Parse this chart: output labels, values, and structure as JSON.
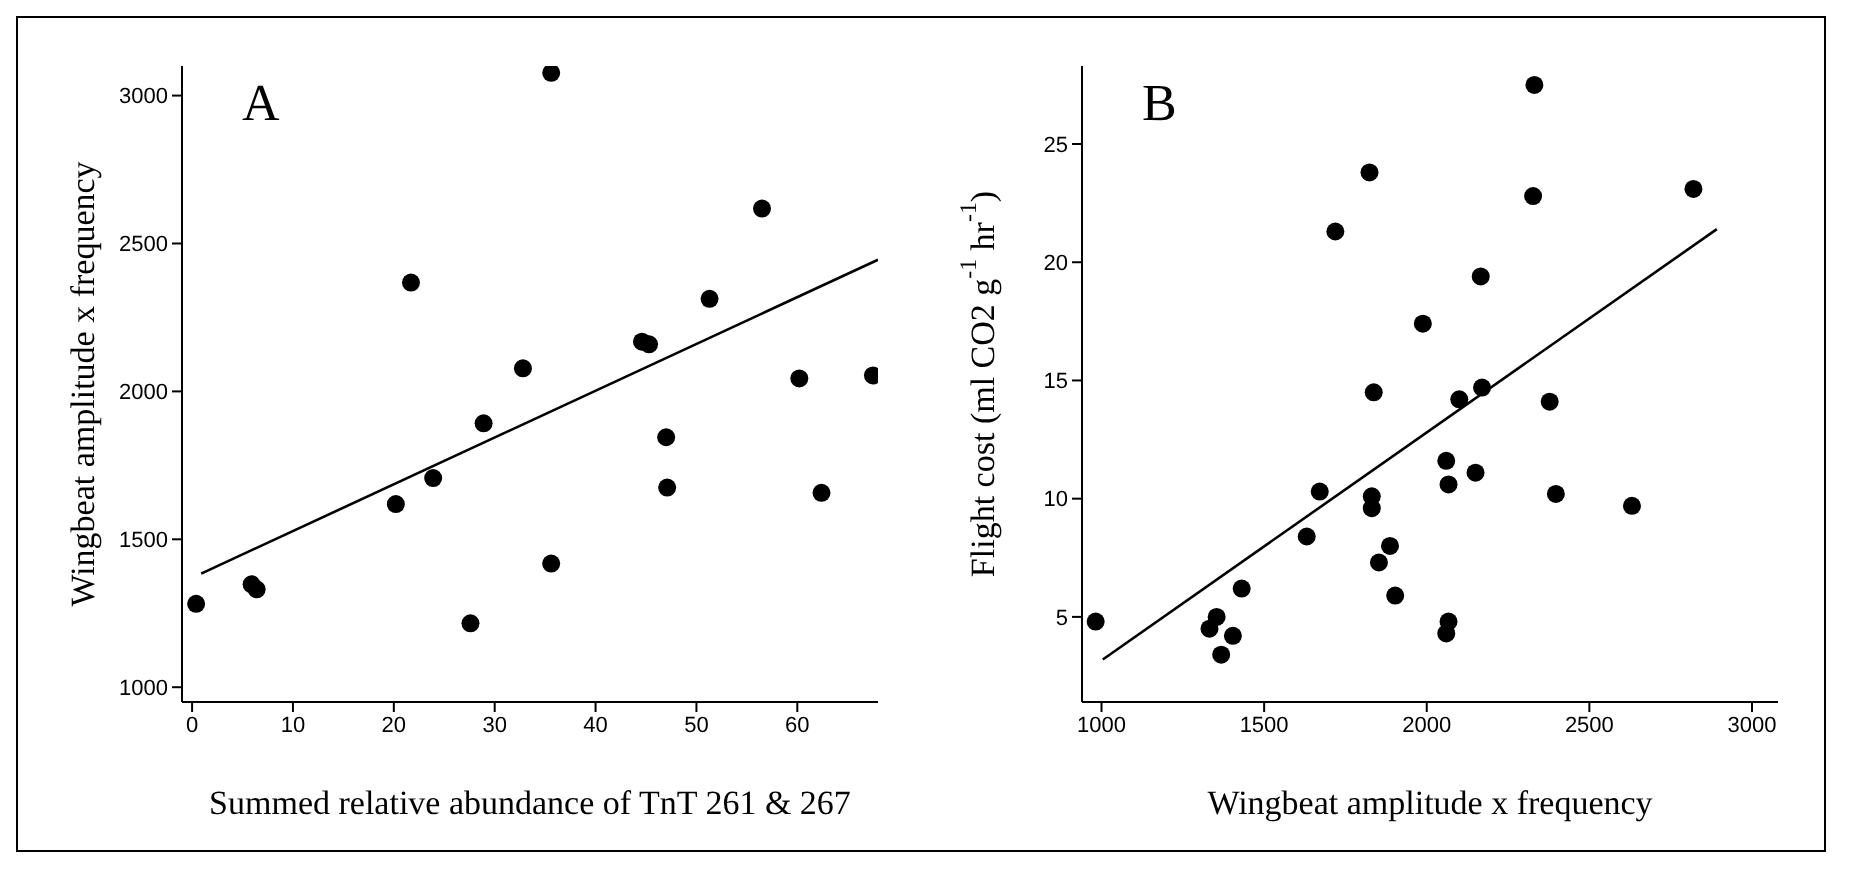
{
  "chart_data": [
    {
      "type": "scatter",
      "title": "A",
      "xlabel": "Summed relative abundance of TnT 261 & 267",
      "ylabel": "Wingbeat amplitude x frequency",
      "xlim": [
        -1,
        68
      ],
      "ylim": [
        950,
        3100
      ],
      "xticks": [
        0,
        10,
        20,
        30,
        40,
        50,
        60
      ],
      "yticks": [
        1000,
        1500,
        2000,
        2500,
        3000
      ],
      "grid": false,
      "series": [
        {
          "marker": "circle",
          "color": "#000000",
          "x": [
            0.4,
            5.9,
            6.4,
            21.7,
            20.2,
            23.9,
            28.9,
            27.6,
            32.8,
            35.6,
            35.6,
            44.6,
            45.3,
            47.0,
            47.1,
            51.3,
            56.5,
            60.2,
            62.4,
            67.5
          ],
          "values": [
            1282,
            1348,
            1331,
            2368,
            1619,
            1707,
            1892,
            1216,
            2078,
            3077,
            1418,
            2168,
            2159,
            1845,
            1675,
            2313,
            2618,
            2044,
            1657,
            2054
          ]
        },
        {
          "type": "line",
          "marker": "none",
          "color": "#000000",
          "x": [
            0.9,
            68
          ],
          "values": [
            1384,
            2445
          ],
          "line_style": "solid"
        }
      ]
    },
    {
      "type": "scatter",
      "title": "B",
      "xlabel": "Wingbeat amplitude x frequency",
      "ylabel": "Flight cost (ml CO2 g$^{-1}$ hr$^{-1}$)",
      "xlim": [
        940,
        3080
      ],
      "ylim": [
        1.4,
        28.3
      ],
      "xticks": [
        1000,
        1500,
        2000,
        2500,
        3000
      ],
      "yticks": [
        5,
        10,
        15,
        20,
        25
      ],
      "grid": false,
      "series": [
        {
          "marker": "circle",
          "color": "#000000",
          "x": [
            982,
            1332,
            1354,
            1368,
            1404,
            1431,
            1631,
            1671,
            1719,
            1824,
            1837,
            1831,
            1831,
            1887,
            1853,
            1903,
            1988,
            2060,
            2067,
            2067,
            2060,
            2100,
            2150,
            2166,
            2170,
            2331,
            2327,
            2378,
            2397,
            2631,
            2820
          ],
          "values": [
            4.8,
            4.5,
            5.0,
            3.4,
            4.2,
            6.2,
            8.4,
            10.3,
            21.3,
            23.8,
            14.5,
            10.1,
            9.6,
            8.0,
            7.3,
            5.9,
            17.4,
            11.6,
            10.6,
            4.8,
            4.3,
            14.2,
            11.1,
            19.4,
            14.7,
            27.5,
            22.8,
            14.1,
            10.2,
            9.7,
            23.1
          ]
        },
        {
          "type": "line",
          "marker": "none",
          "color": "#000000",
          "x": [
            1004,
            2892
          ],
          "values": [
            3.2,
            21.4
          ],
          "line_style": "solid"
        }
      ]
    }
  ]
}
